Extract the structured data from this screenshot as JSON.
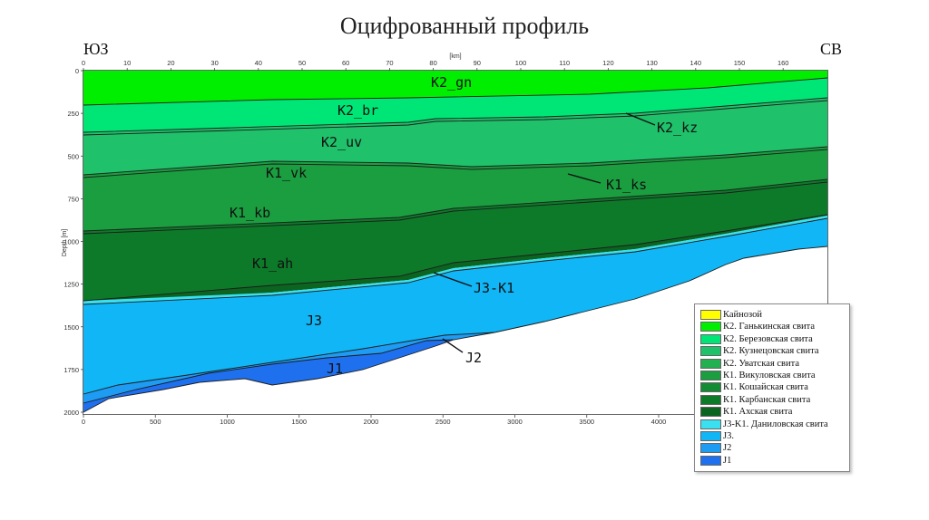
{
  "title": "Оцифрованный профиль",
  "corner_left": "ЮЗ",
  "corner_right": "СВ",
  "top_axis": {
    "label": "[km]",
    "ticks": [
      "0",
      "10",
      "20",
      "30",
      "40",
      "50",
      "60",
      "70",
      "80",
      "90",
      "100",
      "110",
      "120",
      "130",
      "140",
      "150",
      "160"
    ]
  },
  "bottom_axis": {
    "ticks": [
      "0",
      "500",
      "1000",
      "1500",
      "2000",
      "2500",
      "3000",
      "3500",
      "4000"
    ]
  },
  "left_axis": {
    "label": "Depth [m]",
    "ticks": [
      "0",
      "250",
      "500",
      "750",
      "1000",
      "1250",
      "1500",
      "1750",
      "2000"
    ]
  },
  "layer_labels": {
    "k2gn": "K2_gn",
    "k2br": "K2_br",
    "k2kz": "K2_kz",
    "k2uv": "K2_uv",
    "k1vk": "K1_vk",
    "k1ks": "K1_ks",
    "k1kb": "K1_kb",
    "k1ah": "K1_ah",
    "j3k1": "J3-K1",
    "j3": "J3",
    "j2": "J2",
    "j1": "J1"
  },
  "legend": [
    {
      "label": "Кайнозой",
      "color": "#ffff00"
    },
    {
      "label": "К2. Ганькинская свита",
      "color": "#00ee00"
    },
    {
      "label": "К2. Березовская свита",
      "color": "#00e676"
    },
    {
      "label": "К2. Кузнецовская свита",
      "color": "#1fc16a"
    },
    {
      "label": "К2. Уватская свита",
      "color": "#22b050"
    },
    {
      "label": "К1. Викуловская свита",
      "color": "#1a9e40"
    },
    {
      "label": "К1. Кошайская свита",
      "color": "#118c34"
    },
    {
      "label": "К1. Карбанская свита",
      "color": "#0d7a2a"
    },
    {
      "label": "К1. Ахская свита",
      "color": "#0b6420"
    },
    {
      "label": "J3-K1. Даниловская свита",
      "color": "#39e0f0"
    },
    {
      "label": "J3.",
      "color": "#10b6f6"
    },
    {
      "label": "J2",
      "color": "#1e9bf2"
    },
    {
      "label": "J1",
      "color": "#1f70ee"
    }
  ]
}
